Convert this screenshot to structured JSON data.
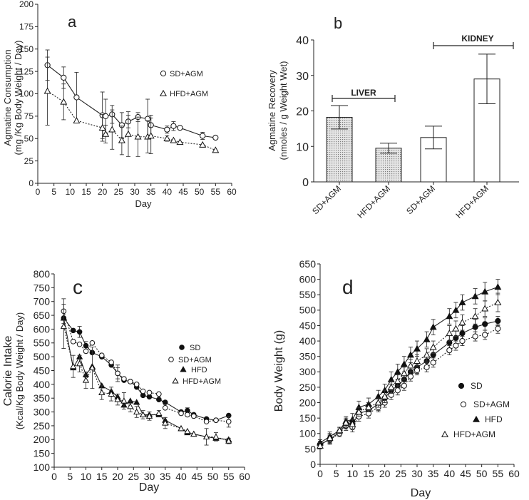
{
  "chart_data": [
    {
      "panel": "a",
      "type": "line",
      "xlabel": "Day",
      "ylabel_line1": "Agmatine Consumption",
      "ylabel_line2": "(mg /Kg Body Weight / Day)",
      "xlim": [
        0,
        60
      ],
      "ylim": [
        0,
        200
      ],
      "xticks": [
        "0",
        "5",
        "10",
        "15",
        "20",
        "25",
        "30",
        "35",
        "40",
        "45",
        "50",
        "55",
        "60"
      ],
      "yticks": [
        "0",
        "25",
        "50",
        "75",
        "100",
        "125",
        "150",
        "175",
        "200"
      ],
      "series": [
        {
          "name": "SD+AGM",
          "marker": "circle-open",
          "line": "solid",
          "x": [
            3,
            8,
            12,
            20,
            21,
            23,
            26,
            28,
            31,
            34,
            35,
            40,
            42,
            44,
            51,
            55
          ],
          "y": [
            132,
            118,
            96,
            76,
            75,
            77,
            65,
            69,
            74,
            72,
            65,
            60,
            64,
            62,
            53,
            51
          ],
          "err": [
            17,
            12,
            28,
            26,
            19,
            10,
            14,
            7,
            5,
            22,
            11,
            4,
            5,
            0,
            4,
            0
          ]
        },
        {
          "name": "HFD+AGM",
          "marker": "triangle-open",
          "line": "dotted",
          "x": [
            3,
            8,
            12,
            20,
            21,
            23,
            26,
            28,
            31,
            34,
            35,
            40,
            42,
            44,
            51,
            55
          ],
          "y": [
            103,
            91,
            70,
            62,
            55,
            60,
            48,
            55,
            52,
            52,
            53,
            50,
            48,
            46,
            43,
            37
          ],
          "err": [
            38,
            20,
            0,
            15,
            10,
            22,
            16,
            25,
            22,
            18,
            20,
            3,
            0,
            0,
            0,
            0
          ]
        }
      ]
    },
    {
      "panel": "b",
      "type": "bar",
      "ylabel_line1": "Agmatine Recovery",
      "ylabel_line2": "(nmoles / g Weight Wet)",
      "ylim": [
        0,
        40
      ],
      "yticks": [
        "0",
        "10",
        "20",
        "30",
        "40"
      ],
      "categories": [
        "SD+AGM",
        "HFD+AGM",
        "SD+AGM",
        "HFD+AGM"
      ],
      "values": [
        18.2,
        9.5,
        12.5,
        29
      ],
      "err": [
        3.3,
        1.4,
        3.2,
        7
      ],
      "groups": [
        {
          "label": "LIVER",
          "fill": "hatched"
        },
        {
          "label": "KIDNEY",
          "fill": "open"
        }
      ]
    },
    {
      "panel": "c",
      "type": "line",
      "xlabel": "Day",
      "ylabel_line1": "Calorie Intake",
      "ylabel_line2": "(Kcal/Kg Body Weight / Day)",
      "xlim": [
        0,
        60
      ],
      "ylim": [
        100,
        800
      ],
      "xticks": [
        "0",
        "5",
        "10",
        "15",
        "20",
        "25",
        "30",
        "35",
        "40",
        "45",
        "50",
        "55",
        "60"
      ],
      "yticks": [
        "100",
        "150",
        "200",
        "250",
        "300",
        "350",
        "400",
        "450",
        "500",
        "550",
        "600",
        "650",
        "700",
        "750",
        "800"
      ],
      "series": [
        {
          "name": "SD",
          "marker": "circle-filled",
          "line": "solid",
          "x": [
            3,
            6,
            8,
            10,
            12,
            15,
            18,
            20,
            22,
            24,
            26,
            28,
            30,
            33,
            35,
            40,
            42,
            44,
            48,
            51,
            55
          ],
          "y": [
            640,
            595,
            590,
            540,
            515,
            500,
            470,
            440,
            415,
            410,
            390,
            360,
            355,
            345,
            335,
            300,
            305,
            290,
            275,
            270,
            287
          ],
          "err": [
            30,
            0,
            20,
            15,
            0,
            0,
            0,
            20,
            0,
            0,
            0,
            0,
            0,
            0,
            0,
            0,
            10,
            0,
            0,
            0,
            0
          ]
        },
        {
          "name": "SD+AGM",
          "marker": "circle-open",
          "line": "dotted",
          "x": [
            3,
            6,
            8,
            10,
            12,
            15,
            18,
            20,
            22,
            24,
            26,
            28,
            30,
            33,
            35,
            40,
            42,
            44,
            48,
            51,
            55
          ],
          "y": [
            665,
            555,
            545,
            520,
            550,
            505,
            480,
            440,
            420,
            410,
            400,
            375,
            370,
            365,
            315,
            295,
            290,
            285,
            265,
            270,
            265
          ],
          "err": [
            45,
            0,
            0,
            0,
            0,
            0,
            0,
            30,
            0,
            0,
            0,
            0,
            0,
            0,
            0,
            0,
            0,
            0,
            0,
            0,
            20
          ]
        },
        {
          "name": "HFD",
          "marker": "triangle-filled",
          "line": "solid",
          "x": [
            3,
            6,
            8,
            10,
            12,
            15,
            18,
            20,
            22,
            24,
            26,
            28,
            30,
            33,
            35,
            40,
            42,
            44,
            48,
            51,
            55
          ],
          "y": [
            640,
            460,
            500,
            435,
            465,
            395,
            375,
            355,
            325,
            340,
            335,
            290,
            290,
            290,
            270,
            240,
            225,
            220,
            210,
            205,
            200
          ],
          "err": [
            0,
            0,
            0,
            0,
            0,
            0,
            0,
            0,
            0,
            0,
            0,
            0,
            0,
            0,
            0,
            0,
            0,
            0,
            0,
            0,
            0
          ]
        },
        {
          "name": "HFD+AGM",
          "marker": "triangle-open",
          "line": "dotted",
          "x": [
            3,
            6,
            8,
            10,
            12,
            15,
            18,
            20,
            22,
            24,
            26,
            28,
            30,
            33,
            35,
            40,
            42,
            44,
            48,
            51,
            55
          ],
          "y": [
            610,
            465,
            475,
            415,
            460,
            370,
            365,
            345,
            340,
            320,
            300,
            290,
            285,
            295,
            260,
            240,
            230,
            220,
            210,
            210,
            195
          ],
          "err": [
            80,
            40,
            30,
            30,
            75,
            25,
            25,
            20,
            30,
            20,
            20,
            15,
            15,
            10,
            20,
            0,
            0,
            0,
            30,
            15,
            10
          ]
        }
      ]
    },
    {
      "panel": "d",
      "type": "line",
      "xlabel": "Day",
      "ylabel": "Body Weight (g)",
      "xlim": [
        0,
        60
      ],
      "ylim": [
        0,
        650
      ],
      "xticks": [
        "0",
        "5",
        "10",
        "15",
        "20",
        "25",
        "30",
        "35",
        "40",
        "45",
        "50",
        "55",
        "60"
      ],
      "yticks": [
        "0",
        "50",
        "100",
        "150",
        "200",
        "250",
        "300",
        "350",
        "400",
        "450",
        "500",
        "550",
        "600",
        "650"
      ],
      "series": [
        {
          "name": "SD",
          "marker": "circle-filled",
          "line": "solid",
          "x": [
            0,
            3,
            6,
            8,
            10,
            12,
            15,
            18,
            20,
            22,
            24,
            26,
            28,
            30,
            33,
            35,
            40,
            42,
            44,
            48,
            51,
            55
          ],
          "y": [
            65,
            80,
            105,
            130,
            130,
            165,
            175,
            195,
            215,
            240,
            255,
            275,
            300,
            315,
            335,
            355,
            395,
            410,
            425,
            445,
            455,
            465
          ],
          "err": [
            10,
            15,
            10,
            15,
            15,
            15,
            15,
            20,
            20,
            20,
            20,
            20,
            20,
            20,
            20,
            20,
            25,
            25,
            25,
            25,
            20,
            15
          ]
        },
        {
          "name": "SD+AGM",
          "marker": "circle-open",
          "line": "dotted",
          "x": [
            0,
            3,
            6,
            8,
            10,
            12,
            15,
            18,
            20,
            22,
            24,
            26,
            28,
            30,
            33,
            35,
            40,
            42,
            44,
            48,
            51,
            55
          ],
          "y": [
            65,
            80,
            100,
            125,
            120,
            155,
            165,
            185,
            200,
            225,
            240,
            255,
            285,
            305,
            315,
            330,
            370,
            385,
            400,
            415,
            420,
            440
          ],
          "err": [
            10,
            12,
            10,
            15,
            15,
            15,
            15,
            15,
            15,
            15,
            15,
            15,
            15,
            15,
            15,
            15,
            15,
            15,
            15,
            15,
            15,
            15
          ]
        },
        {
          "name": "HFD",
          "marker": "triangle-filled",
          "line": "solid",
          "x": [
            0,
            3,
            6,
            8,
            10,
            12,
            15,
            18,
            20,
            22,
            24,
            26,
            28,
            30,
            33,
            35,
            40,
            42,
            44,
            48,
            51,
            55
          ],
          "y": [
            70,
            90,
            110,
            140,
            145,
            185,
            195,
            220,
            240,
            275,
            300,
            325,
            355,
            375,
            405,
            445,
            480,
            500,
            525,
            545,
            560,
            575
          ],
          "err": [
            10,
            15,
            10,
            15,
            20,
            20,
            20,
            20,
            20,
            25,
            25,
            25,
            25,
            25,
            25,
            25,
            25,
            25,
            25,
            25,
            30,
            25
          ]
        },
        {
          "name": "HFD+AGM",
          "marker": "triangle-open",
          "line": "dotted",
          "x": [
            0,
            3,
            6,
            8,
            10,
            12,
            15,
            18,
            20,
            22,
            24,
            26,
            28,
            30,
            33,
            35,
            40,
            42,
            44,
            48,
            51,
            55
          ],
          "y": [
            60,
            85,
            110,
            135,
            130,
            170,
            185,
            200,
            220,
            250,
            270,
            295,
            320,
            335,
            355,
            380,
            425,
            440,
            460,
            480,
            505,
            525
          ],
          "err": [
            10,
            15,
            10,
            15,
            15,
            15,
            15,
            15,
            20,
            20,
            20,
            20,
            20,
            20,
            20,
            20,
            25,
            25,
            25,
            25,
            25,
            30
          ]
        }
      ]
    }
  ]
}
